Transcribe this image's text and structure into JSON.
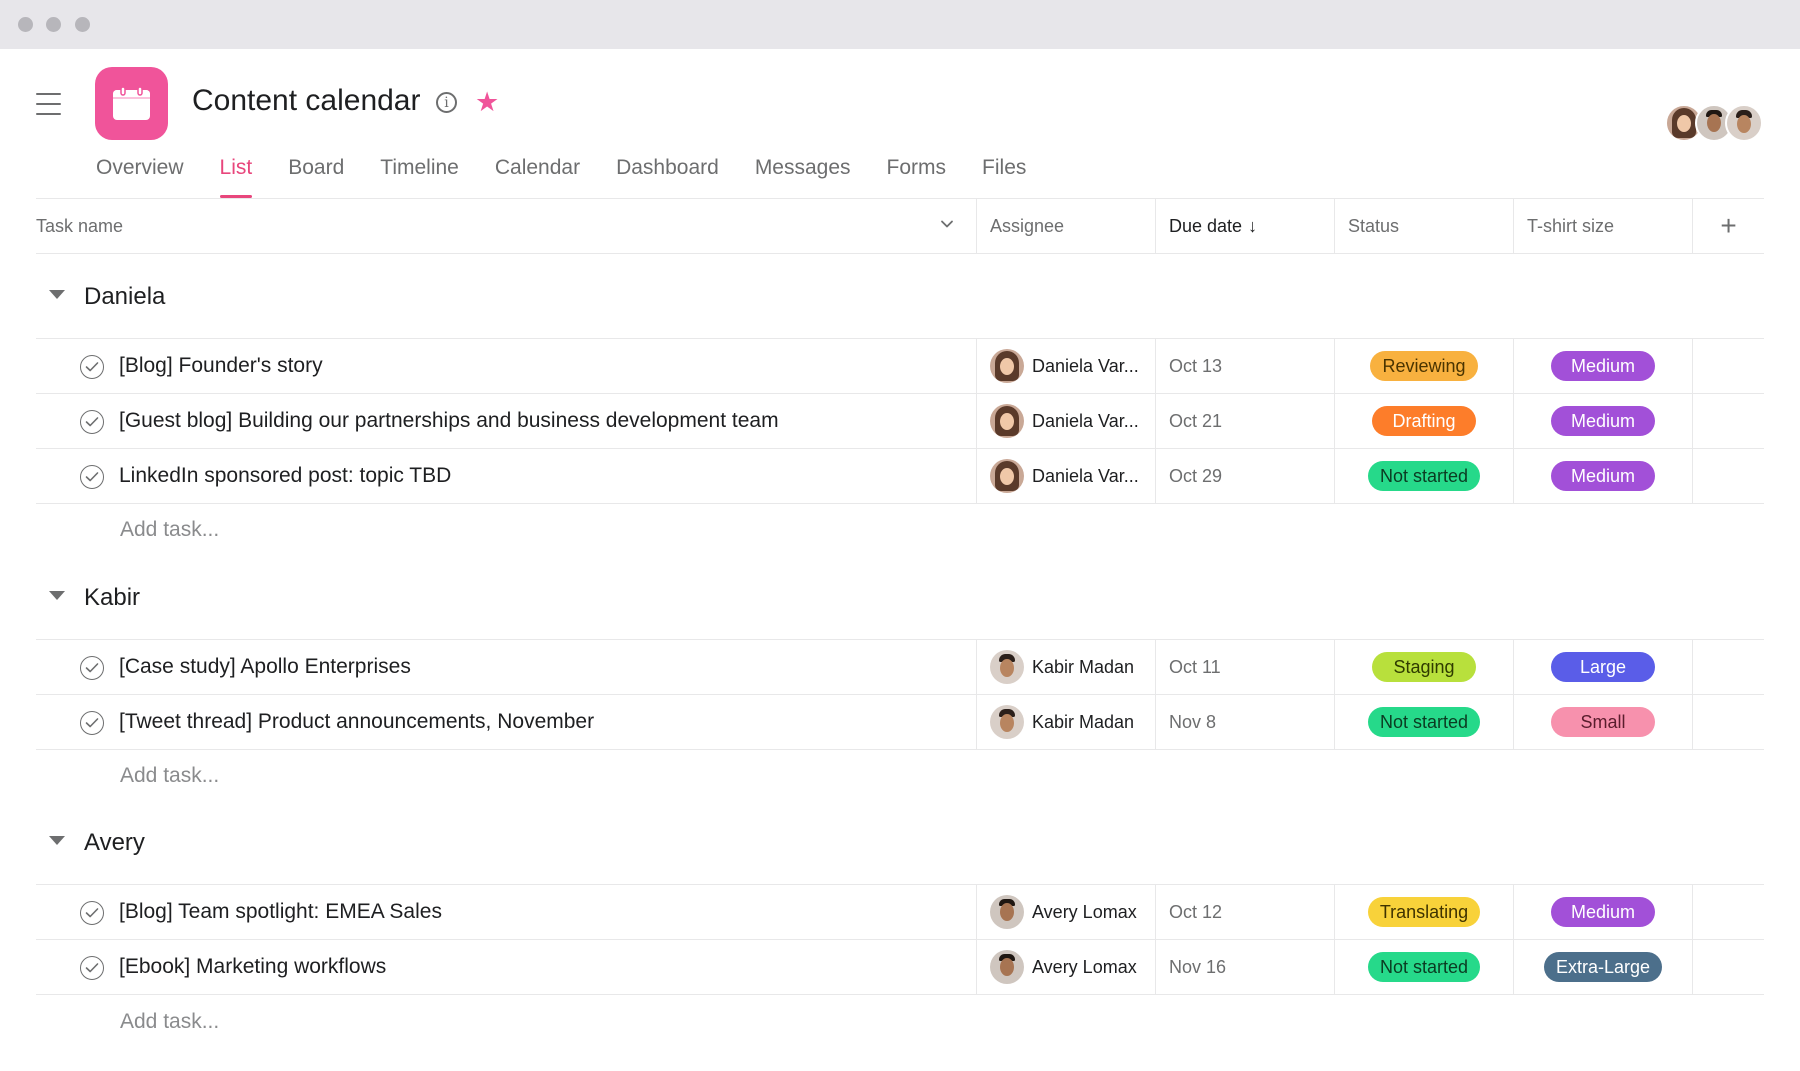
{
  "window": {
    "controls": [
      "close",
      "minimize",
      "maximize"
    ]
  },
  "header": {
    "title": "Content calendar",
    "logo_icon": "calendar-icon",
    "info_icon_glyph": "i",
    "star_glyph": "★",
    "accent_color": "#f0549a"
  },
  "tabs": [
    {
      "label": "Overview",
      "active": false
    },
    {
      "label": "List",
      "active": true
    },
    {
      "label": "Board",
      "active": false
    },
    {
      "label": "Timeline",
      "active": false
    },
    {
      "label": "Calendar",
      "active": false
    },
    {
      "label": "Dashboard",
      "active": false
    },
    {
      "label": "Messages",
      "active": false
    },
    {
      "label": "Forms",
      "active": false
    },
    {
      "label": "Files",
      "active": false
    }
  ],
  "columns": {
    "task": "Task name",
    "assignee": "Assignee",
    "due": "Due date",
    "due_sort_glyph": "↓",
    "status": "Status",
    "size": "T-shirt size",
    "add": "+"
  },
  "sections": [
    {
      "name": "Daniela",
      "add_task": "Add task...",
      "tasks": [
        {
          "name": "[Blog] Founder's story",
          "assignee": "Daniela Var...",
          "due": "Oct 13",
          "status": "Reviewing",
          "size": "Medium"
        },
        {
          "name": "[Guest blog] Building our partnerships and business development team",
          "assignee": "Daniela Var...",
          "due": "Oct 21",
          "status": "Drafting",
          "size": "Medium"
        },
        {
          "name": "LinkedIn sponsored post: topic TBD",
          "assignee": "Daniela Var...",
          "due": "Oct 29",
          "status": "Not started",
          "size": "Medium"
        }
      ]
    },
    {
      "name": "Kabir",
      "add_task": "Add task...",
      "tasks": [
        {
          "name": "[Case study] Apollo Enterprises",
          "assignee": "Kabir Madan",
          "due": "Oct 11",
          "status": "Staging",
          "size": "Large"
        },
        {
          "name": "[Tweet thread] Product announcements, November",
          "assignee": "Kabir Madan",
          "due": "Nov 8",
          "status": "Not started",
          "size": "Small"
        }
      ]
    },
    {
      "name": "Avery",
      "add_task": "Add task...",
      "tasks": [
        {
          "name": "[Blog] Team spotlight: EMEA Sales",
          "assignee": "Avery Lomax",
          "due": "Oct 12",
          "status": "Translating",
          "size": "Medium"
        },
        {
          "name": "[Ebook] Marketing workflows",
          "assignee": "Avery Lomax",
          "due": "Nov 16",
          "status": "Not started",
          "size": "Extra-Large"
        }
      ]
    }
  ],
  "status_colors": {
    "Reviewing": "#f8b13f",
    "Drafting": "#fd7d2a",
    "Not started": "#26d98a",
    "Staging": "#b8e03c",
    "Translating": "#f8d23a"
  },
  "size_colors": {
    "Medium": "#a250d8",
    "Large": "#5a5de8",
    "Small": "#f791ad",
    "Extra-Large": "#4c6f8b"
  }
}
